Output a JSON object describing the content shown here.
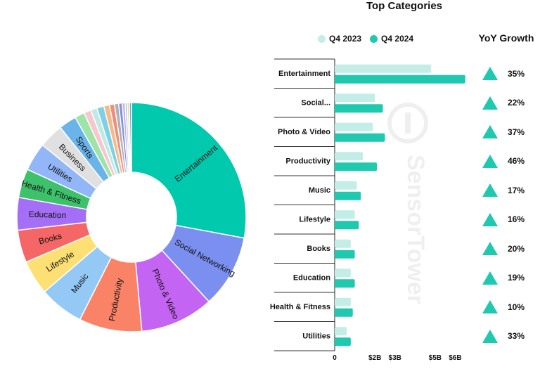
{
  "chart_data": [
    {
      "type": "pie",
      "donut": true,
      "slices": [
        {
          "label": "Entertainment",
          "value": 28.0,
          "color": "#00c9ad"
        },
        {
          "label": "Social Networking",
          "value": 10.3,
          "color": "#7b8ff0"
        },
        {
          "label": "Photo & Video",
          "value": 10.4,
          "color": "#c464f2"
        },
        {
          "label": "Productivity",
          "value": 8.9,
          "color": "#fa8266"
        },
        {
          "label": "Music",
          "value": 6.3,
          "color": "#93c9f4"
        },
        {
          "label": "Lifestyle",
          "value": 4.9,
          "color": "#fde074"
        },
        {
          "label": "Books",
          "value": 4.6,
          "color": "#f56666"
        },
        {
          "label": "Education",
          "value": 4.6,
          "color": "#a56ef7"
        },
        {
          "label": "Health & Fitness",
          "value": 4.1,
          "color": "#3dc16a"
        },
        {
          "label": "Utilities",
          "value": 4.0,
          "color": "#93b6f8"
        },
        {
          "label": "Business",
          "value": 3.5,
          "color": "#e0e0e0"
        },
        {
          "label": "Sports",
          "value": 2.5,
          "color": "#6ab4e9"
        },
        {
          "label": "",
          "value": 1.4,
          "color": "#9fe3a8"
        },
        {
          "label": "",
          "value": 1.0,
          "color": "#f7c7d0"
        },
        {
          "label": "",
          "value": 0.9,
          "color": "#bfe9e4"
        },
        {
          "label": "",
          "value": 1.0,
          "color": "#7fd0e6"
        },
        {
          "label": "",
          "value": 0.8,
          "color": "#f6ba87"
        },
        {
          "label": "",
          "value": 0.7,
          "color": "#f08b80"
        },
        {
          "label": "",
          "value": 0.6,
          "color": "#b0b0b0"
        },
        {
          "label": "",
          "value": 0.5,
          "color": "#7a93e5"
        },
        {
          "label": "",
          "value": 0.4,
          "color": "#d7a4f0"
        },
        {
          "label": "",
          "value": 0.3,
          "color": "#81d8c6"
        },
        {
          "label": "",
          "value": 0.3,
          "color": "#f5d48a"
        },
        {
          "label": "",
          "value": 0.3,
          "color": "#6ba0e8"
        }
      ]
    },
    {
      "type": "bar",
      "orientation": "horizontal",
      "title": "Top Categories",
      "categories": [
        "Entertainment",
        "Social...",
        "Photo & Video",
        "Productivity",
        "Music",
        "Lifestyle",
        "Books",
        "Education",
        "Health & Fitness",
        "Utilities"
      ],
      "series": [
        {
          "name": "Q4 2023",
          "color": "#c2eee7",
          "values": [
            4.8,
            2.0,
            1.9,
            1.4,
            1.1,
            1.0,
            0.8,
            0.8,
            0.8,
            0.6
          ]
        },
        {
          "name": "Q4 2024",
          "color": "#1ec9b0",
          "values": [
            6.5,
            2.4,
            2.5,
            2.1,
            1.3,
            1.2,
            1.0,
            1.0,
            0.9,
            0.8
          ]
        }
      ],
      "xlim": [
        0,
        7
      ],
      "xticks": [
        {
          "value": 0,
          "label": "0"
        },
        {
          "value": 2,
          "label": "$2B"
        },
        {
          "value": 3,
          "label": "$3B"
        },
        {
          "value": 5,
          "label": "$5B"
        },
        {
          "value": 6,
          "label": "$6B"
        }
      ],
      "yoy_title": "YoY Growth",
      "yoy_growth": [
        "35%",
        "22%",
        "37%",
        "46%",
        "17%",
        "16%",
        "20%",
        "19%",
        "10%",
        "33%"
      ],
      "yoy_color": "#1ec9b0"
    }
  ],
  "watermark": "SensorTower"
}
